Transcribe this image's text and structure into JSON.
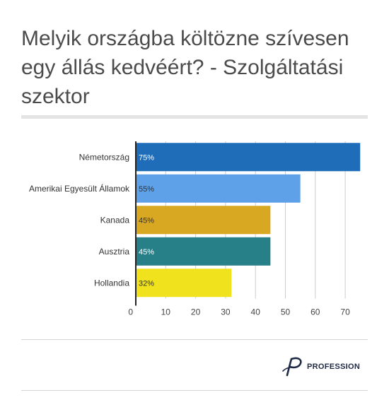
{
  "title": "Melyik országba költözne szívesen egy állás kedvéért? - Szolgáltatási szektor",
  "chart_data": {
    "type": "bar",
    "orientation": "horizontal",
    "title": "Melyik országba költözne szívesen egy állás kedvéért? - Szolgáltatási szektor",
    "categories": [
      "Németország",
      "Amerikai Egyesült Államok",
      "Kanada",
      "Ausztria",
      "Hollandia"
    ],
    "values": [
      75,
      55,
      45,
      45,
      32
    ],
    "data_labels": [
      "75%",
      "55%",
      "45%",
      "45%",
      "32%"
    ],
    "colors": [
      "#1f6db8",
      "#5ea1e8",
      "#d9a823",
      "#277f87",
      "#f0e21c"
    ],
    "label_colors": [
      "#ffffff",
      "#333333",
      "#333333",
      "#ffffff",
      "#333333"
    ],
    "xlim": [
      0,
      78
    ],
    "xticks": [
      0,
      10,
      20,
      30,
      40,
      50,
      60,
      70
    ],
    "grid": true,
    "legend": "none"
  },
  "footer": {
    "brand": "PROFESSION"
  }
}
